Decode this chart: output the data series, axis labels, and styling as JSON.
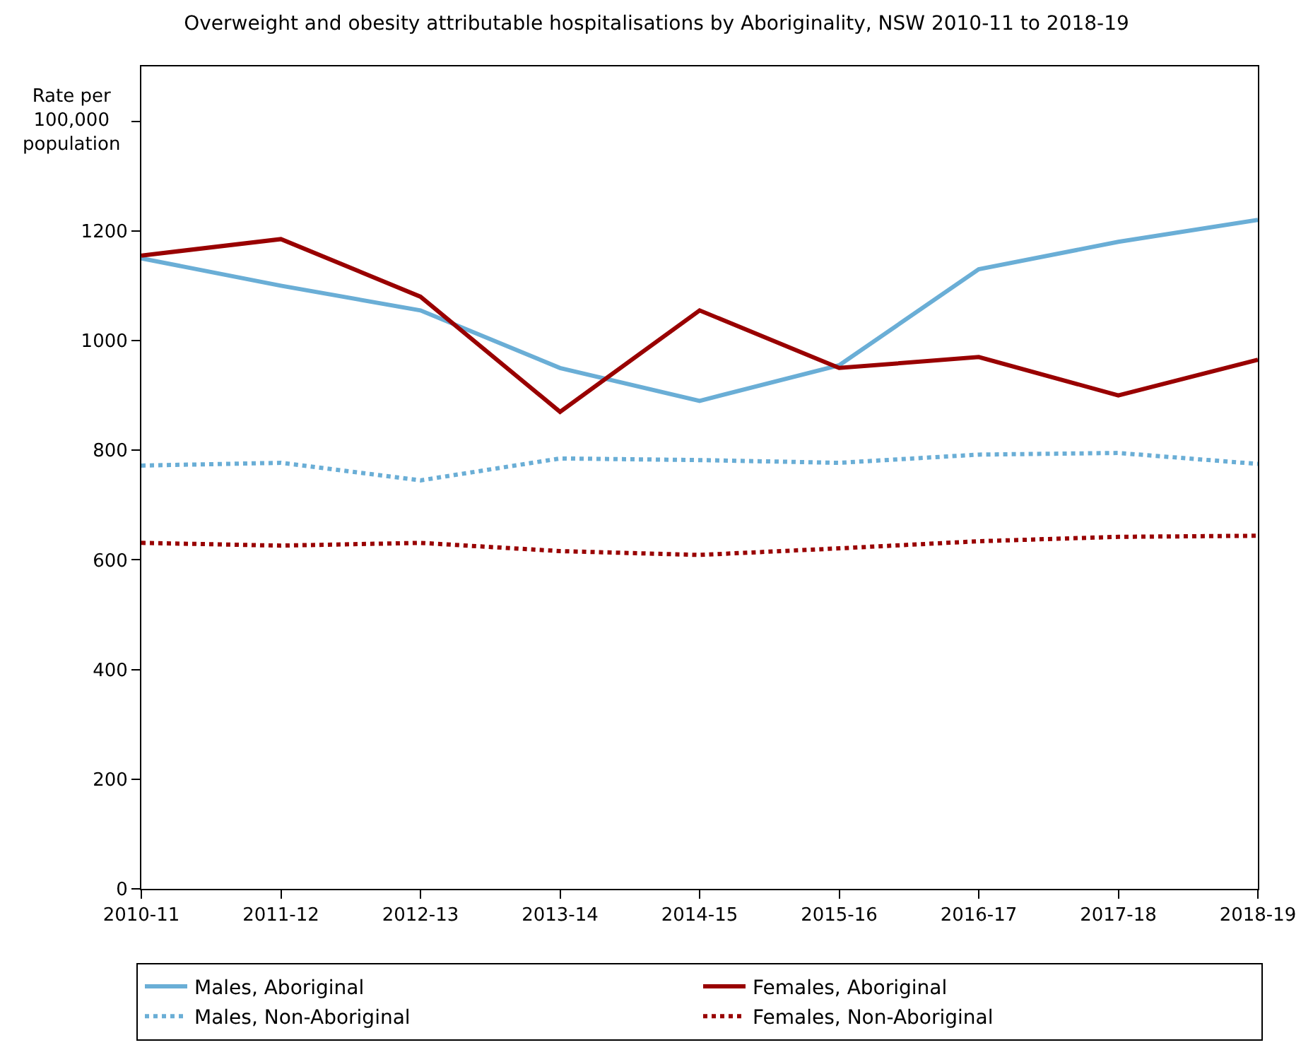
{
  "chart_data": {
    "type": "line",
    "title": "Overweight and obesity attributable hospitalisations by Aboriginality, NSW 2010-11 to 2018-19",
    "ylabel": "Rate per\n100,000\npopulation",
    "categories": [
      "2010-11",
      "2011-12",
      "2012-13",
      "2013-14",
      "2014-15",
      "2015-16",
      "2016-17",
      "2017-18",
      "2018-19"
    ],
    "series": [
      {
        "name": "Males, Aboriginal",
        "color": "#6aaed6",
        "line_style": "solid",
        "values": [
          1150,
          1100,
          1055,
          950,
          890,
          955,
          1130,
          1180,
          1220
        ]
      },
      {
        "name": "Females, Aboriginal",
        "color": "#990000",
        "line_style": "solid",
        "values": [
          1155,
          1185,
          1080,
          870,
          1055,
          950,
          970,
          900,
          965
        ]
      },
      {
        "name": "Males, Non-Aboriginal",
        "color": "#6aaed6",
        "line_style": "dotted",
        "values": [
          772,
          777,
          745,
          785,
          782,
          777,
          792,
          795,
          775
        ]
      },
      {
        "name": "Females, Non-Aboriginal",
        "color": "#990000",
        "line_style": "dotted",
        "values": [
          631,
          626,
          631,
          616,
          609,
          621,
          634,
          642,
          644
        ]
      }
    ],
    "ylim": [
      0,
      1500
    ],
    "yticks": [
      0,
      200,
      400,
      600,
      800,
      1000,
      1200,
      {
        "value": 1400,
        "label": null
      }
    ],
    "legend": "bottom",
    "marker": "none"
  }
}
